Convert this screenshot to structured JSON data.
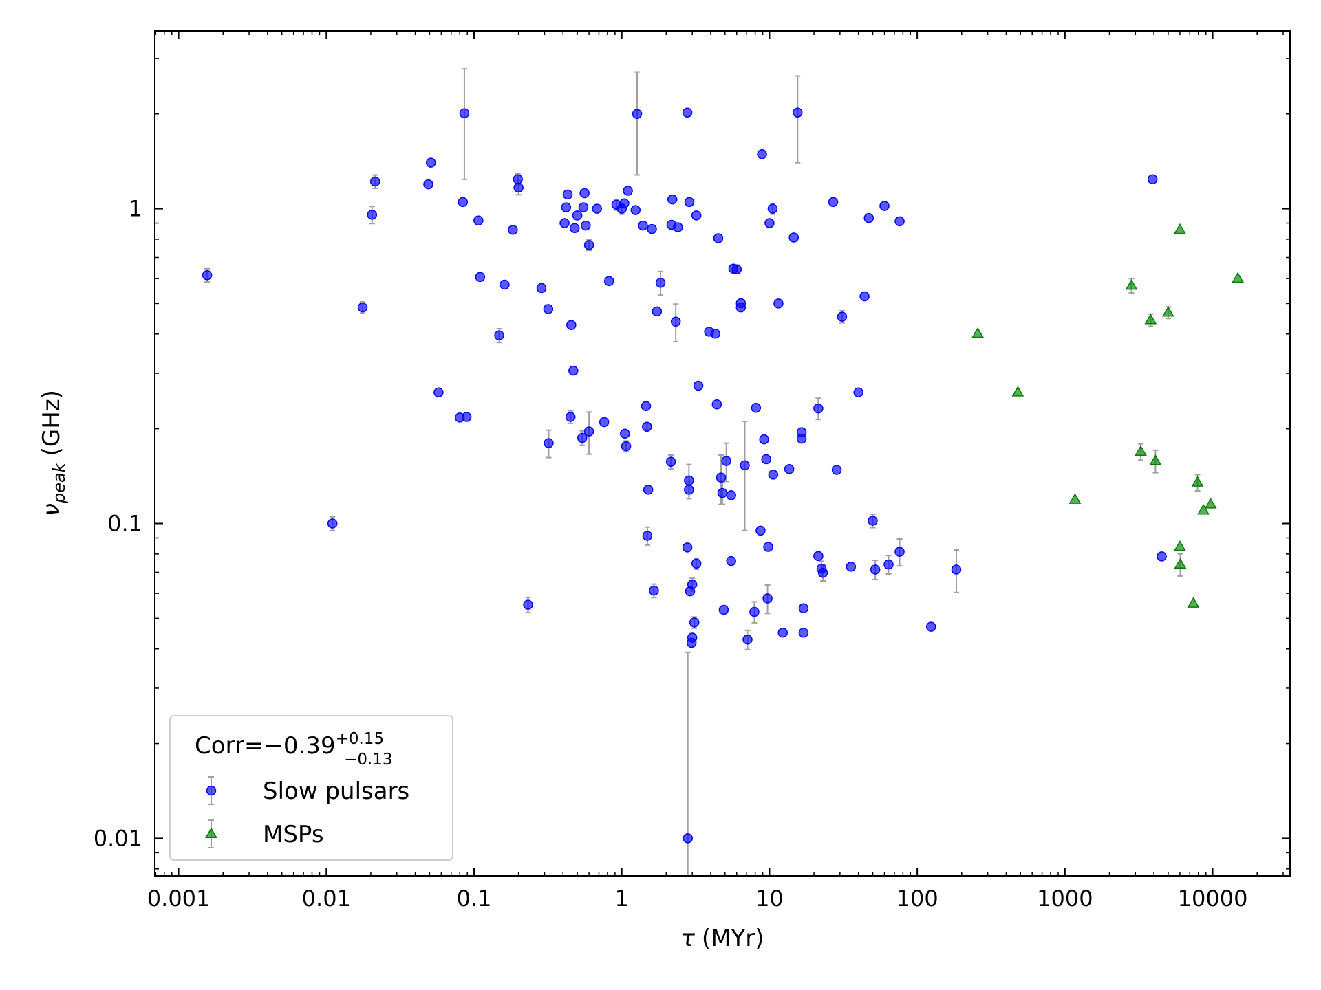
{
  "chart_data": {
    "type": "scatter",
    "xlabel": {
      "symbol": "τ",
      "unit": "(MYr)"
    },
    "ylabel": {
      "symbol": "ν",
      "subscript": "peak",
      "unit": "(GHz)"
    },
    "xscale": "log",
    "yscale": "log",
    "xlim": [
      0.00069,
      33400
    ],
    "ylim": [
      0.0076,
      3.67
    ],
    "xticks": [
      0.001,
      0.01,
      0.1,
      1,
      10,
      100,
      1000,
      10000
    ],
    "yticks": [
      0.01,
      0.1,
      1
    ],
    "legend": {
      "loc": "lower left",
      "title": {
        "text": "Corr=−0.39",
        "sup": "+0.15",
        "sub": "−0.13"
      }
    },
    "series": [
      {
        "name": "Slow pulsars",
        "color": "#0000ff",
        "marker": "circle",
        "errorbar_color": "#a0a0a0",
        "x": [
          0.00156,
          0.011,
          0.0176,
          0.0204,
          0.0214,
          0.049,
          0.051,
          0.084,
          0.08,
          0.089,
          0.086,
          0.107,
          0.11,
          0.0575,
          0.148,
          0.161,
          0.183,
          0.198,
          0.2,
          0.232,
          0.286,
          0.318,
          0.32,
          0.41,
          0.42,
          0.43,
          0.455,
          0.45,
          0.47,
          0.48,
          0.5,
          0.54,
          0.55,
          0.56,
          0.57,
          0.6,
          0.6,
          0.68,
          0.76,
          0.82,
          0.92,
          1.0,
          1.04,
          1.05,
          1.07,
          1.1,
          1.24,
          1.27,
          1.39,
          1.46,
          1.48,
          1.51,
          1.49,
          1.6,
          1.65,
          1.73,
          1.83,
          2.15,
          2.17,
          2.2,
          2.32,
          2.4,
          2.78,
          2.78,
          2.8,
          2.85,
          2.85,
          2.87,
          2.9,
          3.0,
          2.97,
          3.0,
          3.1,
          3.2,
          3.2,
          3.3,
          3.9,
          4.3,
          4.4,
          4.5,
          4.7,
          4.8,
          4.9,
          5.1,
          5.5,
          5.5,
          5.7,
          6.0,
          6.4,
          6.4,
          6.8,
          7.1,
          7.9,
          8.1,
          8.7,
          8.9,
          9.2,
          9.5,
          9.7,
          9.8,
          10,
          10.5,
          10.6,
          11.5,
          12.3,
          13.6,
          14.6,
          15.5,
          16.5,
          16.5,
          17.0,
          17.0,
          21.4,
          21.4,
          22.5,
          23,
          27,
          28.5,
          31,
          35.6,
          40,
          44,
          47,
          50,
          52,
          60,
          64,
          76,
          76,
          124,
          184,
          3920,
          4520
        ],
        "values": [
          0.615,
          0.1,
          0.486,
          0.957,
          1.22,
          1.195,
          1.4,
          1.05,
          0.217,
          0.218,
          2.01,
          0.917,
          0.607,
          0.261,
          0.396,
          0.574,
          0.857,
          1.24,
          1.167,
          0.0552,
          0.56,
          0.48,
          0.18,
          0.9,
          1.01,
          1.11,
          0.427,
          0.218,
          0.306,
          0.868,
          0.952,
          0.187,
          1.01,
          1.12,
          0.884,
          0.196,
          0.767,
          1.0,
          0.21,
          0.589,
          1.03,
          1.0,
          1.04,
          0.193,
          0.176,
          1.14,
          0.99,
          2.0,
          0.884,
          0.236,
          0.203,
          0.128,
          0.0914,
          0.862,
          0.0612,
          0.472,
          0.582,
          0.157,
          0.889,
          1.07,
          0.438,
          0.873,
          2.02,
          0.0839,
          0.01,
          0.128,
          0.137,
          1.05,
          0.0609,
          0.064,
          0.0418,
          0.0434,
          0.0485,
          0.0746,
          0.952,
          0.274,
          0.407,
          0.401,
          0.239,
          0.806,
          0.14,
          0.125,
          0.0532,
          0.158,
          0.123,
          0.076,
          0.645,
          0.642,
          0.501,
          0.486,
          0.153,
          0.0428,
          0.0524,
          0.233,
          0.0949,
          1.49,
          0.185,
          0.16,
          0.0578,
          0.0843,
          0.9,
          1.0,
          0.143,
          0.5,
          0.045,
          0.149,
          0.81,
          2.02,
          0.195,
          0.186,
          0.0538,
          0.045,
          0.232,
          0.0788,
          0.0719,
          0.0697,
          1.05,
          0.148,
          0.454,
          0.0729,
          0.261,
          0.527,
          0.934,
          0.102,
          0.0714,
          1.02,
          0.0741,
          0.912,
          0.0813,
          0.047,
          0.0714,
          1.24,
          0.0786
        ],
        "yerr": [
          0.03,
          0.005,
          0.02,
          0.06,
          0.06,
          null,
          null,
          null,
          null,
          null,
          0.77,
          null,
          null,
          null,
          0.02,
          null,
          null,
          0.05,
          0.06,
          0.003,
          null,
          null,
          0.018,
          null,
          null,
          null,
          null,
          0.01,
          null,
          null,
          null,
          0.01,
          null,
          null,
          null,
          0.03,
          0.03,
          null,
          null,
          null,
          0.04,
          0.04,
          null,
          null,
          0.007,
          null,
          null,
          0.72,
          null,
          null,
          0.005,
          null,
          0.006,
          null,
          0.003,
          null,
          0.05,
          0.008,
          null,
          null,
          0.06,
          null,
          null,
          null,
          0.029,
          0.008,
          0.017,
          null,
          null,
          0.003,
          null,
          null,
          0.002,
          0.003,
          null,
          null,
          null,
          null,
          null,
          null,
          0.025,
          0.01,
          null,
          0.022,
          null,
          null,
          null,
          0.02,
          null,
          null,
          0.058,
          0.003,
          0.004,
          null,
          null,
          null,
          null,
          null,
          0.006,
          null,
          null,
          0.04,
          null,
          null,
          null,
          null,
          null,
          0.62,
          null,
          null,
          null,
          null,
          0.018,
          null,
          0.004,
          0.004,
          null,
          null,
          0.02,
          null,
          null,
          null,
          null,
          0.005,
          0.005,
          null,
          0.005,
          null,
          0.008,
          null,
          0.011,
          null,
          null
        ]
      },
      {
        "name": "MSPs",
        "color": "#008000",
        "marker": "triangle",
        "errorbar_color": "#a0a0a0",
        "x": [
          257,
          480,
          1170,
          2820,
          3260,
          3800,
          4100,
          5000,
          6000,
          6000,
          6040,
          7400,
          7900,
          8650,
          9700,
          14800
        ],
        "values": [
          0.401,
          0.261,
          0.119,
          0.57,
          0.169,
          0.443,
          0.158,
          0.468,
          0.857,
          0.0843,
          0.0741,
          0.0557,
          0.135,
          0.11,
          0.115,
          0.6
        ],
        "yerr": [
          null,
          null,
          null,
          0.03,
          0.01,
          0.02,
          0.013,
          0.02,
          null,
          null,
          0.006,
          null,
          0.008,
          null,
          null,
          null
        ]
      }
    ]
  }
}
